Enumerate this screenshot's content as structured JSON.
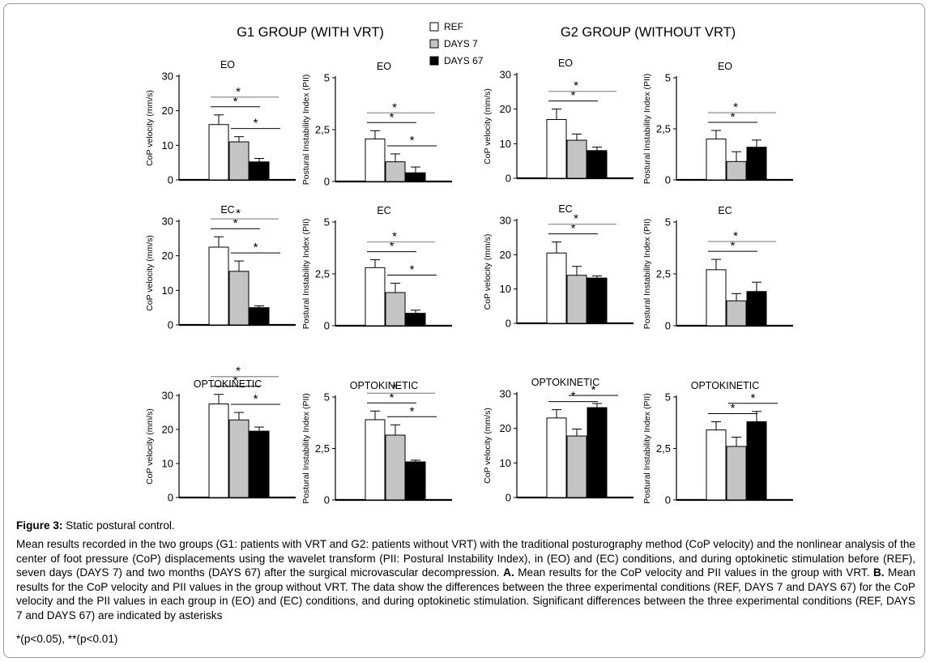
{
  "figure": {
    "group_titles": [
      "G1 GROUP (WITH VRT)",
      "G2 GROUP (WITHOUT VRT)"
    ],
    "legend": [
      {
        "label": "REF",
        "color": "#ffffff"
      },
      {
        "label": "DAYS 7",
        "color": "#c4c4c4"
      },
      {
        "label": "DAYS 67",
        "color": "#000000"
      }
    ]
  },
  "caption": {
    "title_bold": "Figure 3:",
    "title_rest": " Static postural control.",
    "body_parts": [
      {
        "t": "Mean results recorded in the two groups (G1: patients with VRT and G2: patients without VRT) with the traditional posturography method (CoP velocity) and the nonlinear analysis of the center of foot pressure (CoP) displacements using the wavelet transform (PII: Postural Instability Index), in (EO) and (EC) conditions, and during optokinetic stimulation before (REF), seven days (DAYS 7) and two months (DAYS 67) after the surgical microvascular decompression. ",
        "b": false
      },
      {
        "t": "A.",
        "b": true
      },
      {
        "t": " Mean results for the CoP velocity and PII values in the group with VRT. ",
        "b": false
      },
      {
        "t": "B.",
        "b": true
      },
      {
        "t": " Mean results for the CoP velocity and PII values in the group without VRT. The data show the differences between the three experimental conditions (REF, DAYS 7 and DAYS 67) for the CoP velocity and the PII values in each group in (EO) and (EC) conditions, and during optokinetic stimulation. Significant differences between the three experimental conditions (REF, DAYS 7 and DAYS 67) are indicated by asterisks",
        "b": false
      }
    ],
    "footnote": "*(p<0.05), **(p<0.01)"
  },
  "chart_data": [
    {
      "type": "bar",
      "group": "G1 GROUP (WITH VRT)",
      "title": "EO",
      "ylabel": "CoP velocity (mm/s)",
      "ylim": [
        0,
        30
      ],
      "yticks": [
        "0",
        "10",
        "20",
        "30"
      ],
      "categories": [
        "REF",
        "DAYS 7",
        "DAYS 67"
      ],
      "values": [
        16,
        11,
        5.2
      ],
      "errors": [
        2.8,
        1.5,
        1
      ],
      "significance": [
        [
          "REF",
          "DAYS 7",
          "*"
        ],
        [
          "REF",
          "DAYS 67",
          "*"
        ],
        [
          "DAYS 7",
          "DAYS 67",
          "*"
        ]
      ]
    },
    {
      "type": "bar",
      "group": "G1 GROUP (WITH VRT)",
      "title": "EO",
      "ylabel": "Postural Instability Index (PII)",
      "ylim": [
        0,
        5
      ],
      "yticks": [
        "0",
        "2,5",
        "5"
      ],
      "categories": [
        "REF",
        "DAYS 7",
        "DAYS 67"
      ],
      "values": [
        2.05,
        0.95,
        0.42
      ],
      "errors": [
        0.4,
        0.38,
        0.28
      ],
      "significance": [
        [
          "REF",
          "DAYS 7",
          "*"
        ],
        [
          "REF",
          "DAYS 67",
          "*"
        ],
        [
          "DAYS 7",
          "DAYS 67",
          "*"
        ]
      ]
    },
    {
      "type": "bar",
      "group": "G2 GROUP (WITHOUT VRT)",
      "title": "EO",
      "ylabel": "CoP velocity (mm/s)",
      "ylim": [
        0,
        30
      ],
      "yticks": [
        "0",
        "10",
        "20",
        "30"
      ],
      "categories": [
        "REF",
        "DAYS 7",
        "DAYS 67"
      ],
      "values": [
        17,
        11,
        8
      ],
      "errors": [
        3,
        1.8,
        1
      ],
      "significance": [
        [
          "REF",
          "DAYS 7",
          "*"
        ],
        [
          "REF",
          "DAYS 67",
          "*"
        ]
      ]
    },
    {
      "type": "bar",
      "group": "G2 GROUP (WITHOUT VRT)",
      "title": "EO",
      "ylabel": "Postural Instability Index (PII)",
      "ylim": [
        0,
        5
      ],
      "yticks": [
        "0",
        "2,5",
        "5"
      ],
      "categories": [
        "REF",
        "DAYS 7",
        "DAYS 67"
      ],
      "values": [
        2,
        0.9,
        1.6
      ],
      "errors": [
        0.42,
        0.48,
        0.35
      ],
      "significance": [
        [
          "REF",
          "DAYS 7",
          "*"
        ],
        [
          "REF",
          "DAYS 67",
          "*"
        ]
      ]
    },
    {
      "type": "bar",
      "group": "G1 GROUP (WITH VRT)",
      "title": "EC",
      "ylabel": "CoP velocity (mm/s)",
      "ylim": [
        0,
        30
      ],
      "yticks": [
        "0",
        "10",
        "20",
        "30"
      ],
      "categories": [
        "REF",
        "DAYS 7",
        "DAYS 67"
      ],
      "values": [
        22.5,
        15.5,
        5
      ],
      "errors": [
        3,
        3,
        0.5
      ],
      "significance": [
        [
          "REF",
          "DAYS 7",
          "*"
        ],
        [
          "REF",
          "DAYS 67",
          "*"
        ],
        [
          "DAYS 7",
          "DAYS 67",
          "*"
        ]
      ]
    },
    {
      "type": "bar",
      "group": "G1 GROUP (WITH VRT)",
      "title": "EC",
      "ylabel": "Postural Instability Index (PII)",
      "ylim": [
        0,
        5
      ],
      "yticks": [
        "0",
        "2,5",
        "5"
      ],
      "categories": [
        "REF",
        "DAYS 7",
        "DAYS 67"
      ],
      "values": [
        2.8,
        1.6,
        0.6
      ],
      "errors": [
        0.38,
        0.45,
        0.15
      ],
      "significance": [
        [
          "REF",
          "DAYS 7",
          "*"
        ],
        [
          "REF",
          "DAYS 67",
          "*"
        ],
        [
          "DAYS 7",
          "DAYS 67",
          "*"
        ]
      ]
    },
    {
      "type": "bar",
      "group": "G2 GROUP (WITHOUT VRT)",
      "title": "EC",
      "ylabel": "CoP velocity (mm/s)",
      "ylim": [
        0,
        30
      ],
      "yticks": [
        "0",
        "10",
        "20",
        "30"
      ],
      "categories": [
        "REF",
        "DAYS 7",
        "DAYS 67"
      ],
      "values": [
        20.5,
        14,
        13.2
      ],
      "errors": [
        3.2,
        2.6,
        0.6
      ],
      "significance": [
        [
          "REF",
          "DAYS 7",
          "*"
        ],
        [
          "REF",
          "DAYS 67",
          "*"
        ]
      ]
    },
    {
      "type": "bar",
      "group": "G2 GROUP (WITHOUT VRT)",
      "title": "EC",
      "ylabel": "Postural Instability Index (PII)",
      "ylim": [
        0,
        5
      ],
      "yticks": [
        "0",
        "2,5",
        "5"
      ],
      "categories": [
        "REF",
        "DAYS 7",
        "DAYS 67"
      ],
      "values": [
        2.7,
        1.2,
        1.65
      ],
      "errors": [
        0.5,
        0.35,
        0.45
      ],
      "significance": [
        [
          "REF",
          "DAYS 7",
          "*"
        ],
        [
          "REF",
          "DAYS 67",
          "*"
        ]
      ]
    },
    {
      "type": "bar",
      "group": "G1 GROUP (WITH VRT)",
      "title": "OPTOKINETIC",
      "ylabel": "CoP velocity (mm/s)",
      "ylim": [
        0,
        30
      ],
      "yticks": [
        "0",
        "10",
        "20",
        "30"
      ],
      "categories": [
        "REF",
        "DAYS 7",
        "DAYS 67"
      ],
      "values": [
        27.5,
        22.8,
        19.5
      ],
      "errors": [
        2.8,
        2.2,
        1.2
      ],
      "significance": [
        [
          "REF",
          "DAYS 7",
          "*"
        ],
        [
          "REF",
          "DAYS 67",
          "*"
        ],
        [
          "DAYS 7",
          "DAYS 67",
          "*"
        ]
      ]
    },
    {
      "type": "bar",
      "group": "G1 GROUP (WITH VRT)",
      "title": "OPTOKINETIC",
      "ylabel": "Postural Instability Index (PII)",
      "ylim": [
        0,
        5
      ],
      "yticks": [
        "0",
        "2,5",
        "5"
      ],
      "categories": [
        "REF",
        "DAYS 7",
        "DAYS 67"
      ],
      "values": [
        3.9,
        3.15,
        1.85
      ],
      "errors": [
        0.42,
        0.5,
        0.08
      ],
      "significance": [
        [
          "REF",
          "DAYS 7",
          "*"
        ],
        [
          "REF",
          "DAYS 67",
          "*"
        ],
        [
          "DAYS 7",
          "DAYS 67",
          "*"
        ]
      ]
    },
    {
      "type": "bar",
      "group": "G2 GROUP (WITHOUT VRT)",
      "title": "OPTOKINETIC",
      "ylabel": "CoP velocity (mm/s)",
      "ylim": [
        0,
        30
      ],
      "yticks": [
        "0",
        "10",
        "20",
        "30"
      ],
      "categories": [
        "REF",
        "DAYS 7",
        "DAYS 67"
      ],
      "values": [
        23,
        17.8,
        26
      ],
      "errors": [
        2.4,
        2,
        1.2
      ],
      "significance": [
        [
          "REF",
          "DAYS 7",
          "*"
        ],
        [
          "DAYS 7",
          "DAYS 67",
          "*"
        ]
      ]
    },
    {
      "type": "bar",
      "group": "G2 GROUP (WITHOUT VRT)",
      "title": "OPTOKINETIC",
      "ylabel": "Postural Instability Index (PII)",
      "ylim": [
        0,
        5
      ],
      "yticks": [
        "0",
        "2,5",
        "5"
      ],
      "categories": [
        "REF",
        "DAYS 7",
        "DAYS 67"
      ],
      "values": [
        3.4,
        2.6,
        3.8
      ],
      "errors": [
        0.4,
        0.45,
        0.5
      ],
      "significance": [
        [
          "REF",
          "DAYS 7",
          "*"
        ],
        [
          "DAYS 7",
          "DAYS 67",
          "*"
        ]
      ]
    }
  ]
}
